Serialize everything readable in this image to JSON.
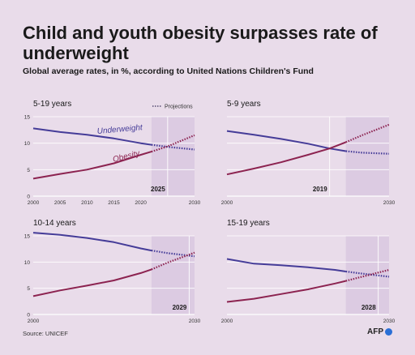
{
  "title": "Child and youth obesity surpasses rate of underweight",
  "subtitle": "Global average rates, in %, according to United Nations Children's Fund",
  "source": "Source: UNICEF",
  "logo": "AFP",
  "legend": {
    "projections_label": "Projections"
  },
  "colors": {
    "underweight": "#453c98",
    "obesity": "#8c2350",
    "projection_band": "#dccbe2",
    "background": "#e9dcea"
  },
  "chart_data": [
    {
      "type": "line",
      "title": "5-19 years",
      "crossover_label": "2025",
      "x_ticks": [
        2000,
        2005,
        2010,
        2015,
        2020,
        2030
      ],
      "y_ticks": [
        0,
        5,
        10,
        15
      ],
      "xlim": [
        2000,
        2030
      ],
      "ylim": [
        0,
        15
      ],
      "projection_start": 2022,
      "series_labels": {
        "underweight": "Underweight",
        "obesity": "Obesity"
      },
      "series": [
        {
          "key": "underweight",
          "x": [
            2000,
            2005,
            2010,
            2015,
            2020,
            2022,
            2025,
            2030
          ],
          "values": [
            12.8,
            12.1,
            11.6,
            10.9,
            10.0,
            9.7,
            9.3,
            8.8
          ]
        },
        {
          "key": "obesity",
          "x": [
            2000,
            2005,
            2010,
            2015,
            2020,
            2022,
            2025,
            2030
          ],
          "values": [
            3.3,
            4.2,
            5.0,
            6.2,
            7.8,
            8.4,
            9.4,
            11.5
          ]
        }
      ]
    },
    {
      "type": "line",
      "title": "5-9 years",
      "crossover_label": "2019",
      "x_ticks": [
        2000,
        2030
      ],
      "y_ticks": [],
      "xlim": [
        2000,
        2030
      ],
      "ylim": [
        0,
        15
      ],
      "projection_start": 2022,
      "series": [
        {
          "key": "underweight",
          "x": [
            2000,
            2005,
            2010,
            2015,
            2019,
            2022,
            2025,
            2030
          ],
          "values": [
            12.3,
            11.6,
            10.8,
            9.9,
            9.0,
            8.5,
            8.2,
            8.0
          ]
        },
        {
          "key": "obesity",
          "x": [
            2000,
            2005,
            2010,
            2015,
            2019,
            2022,
            2025,
            2030
          ],
          "values": [
            4.1,
            5.2,
            6.4,
            7.8,
            9.0,
            10.2,
            11.5,
            13.5
          ]
        }
      ]
    },
    {
      "type": "line",
      "title": "10-14 years",
      "crossover_label": "2029",
      "x_ticks": [
        2000,
        2030
      ],
      "y_ticks": [
        0,
        5,
        10,
        15
      ],
      "xlim": [
        2000,
        2030
      ],
      "ylim": [
        0,
        15
      ],
      "projection_start": 2022,
      "series": [
        {
          "key": "underweight",
          "x": [
            2000,
            2005,
            2010,
            2015,
            2020,
            2022,
            2025,
            2030
          ],
          "values": [
            15.6,
            15.2,
            14.6,
            13.8,
            12.6,
            12.2,
            11.7,
            11.1
          ]
        },
        {
          "key": "obesity",
          "x": [
            2000,
            2005,
            2010,
            2015,
            2020,
            2022,
            2025,
            2030
          ],
          "values": [
            3.5,
            4.6,
            5.5,
            6.5,
            7.9,
            8.6,
            9.9,
            11.8
          ]
        }
      ]
    },
    {
      "type": "line",
      "title": "15-19 years",
      "crossover_label": "2028",
      "x_ticks": [
        2000,
        2030
      ],
      "y_ticks": [],
      "xlim": [
        2000,
        2030
      ],
      "ylim": [
        0,
        15
      ],
      "projection_start": 2022,
      "series": [
        {
          "key": "underweight",
          "x": [
            2000,
            2005,
            2010,
            2015,
            2020,
            2022,
            2025,
            2030
          ],
          "values": [
            10.6,
            9.7,
            9.4,
            9.0,
            8.5,
            8.2,
            7.8,
            7.2
          ]
        },
        {
          "key": "obesity",
          "x": [
            2000,
            2005,
            2010,
            2015,
            2020,
            2022,
            2025,
            2030
          ],
          "values": [
            2.4,
            3.0,
            3.9,
            4.8,
            5.9,
            6.4,
            7.2,
            8.5
          ]
        }
      ]
    }
  ]
}
